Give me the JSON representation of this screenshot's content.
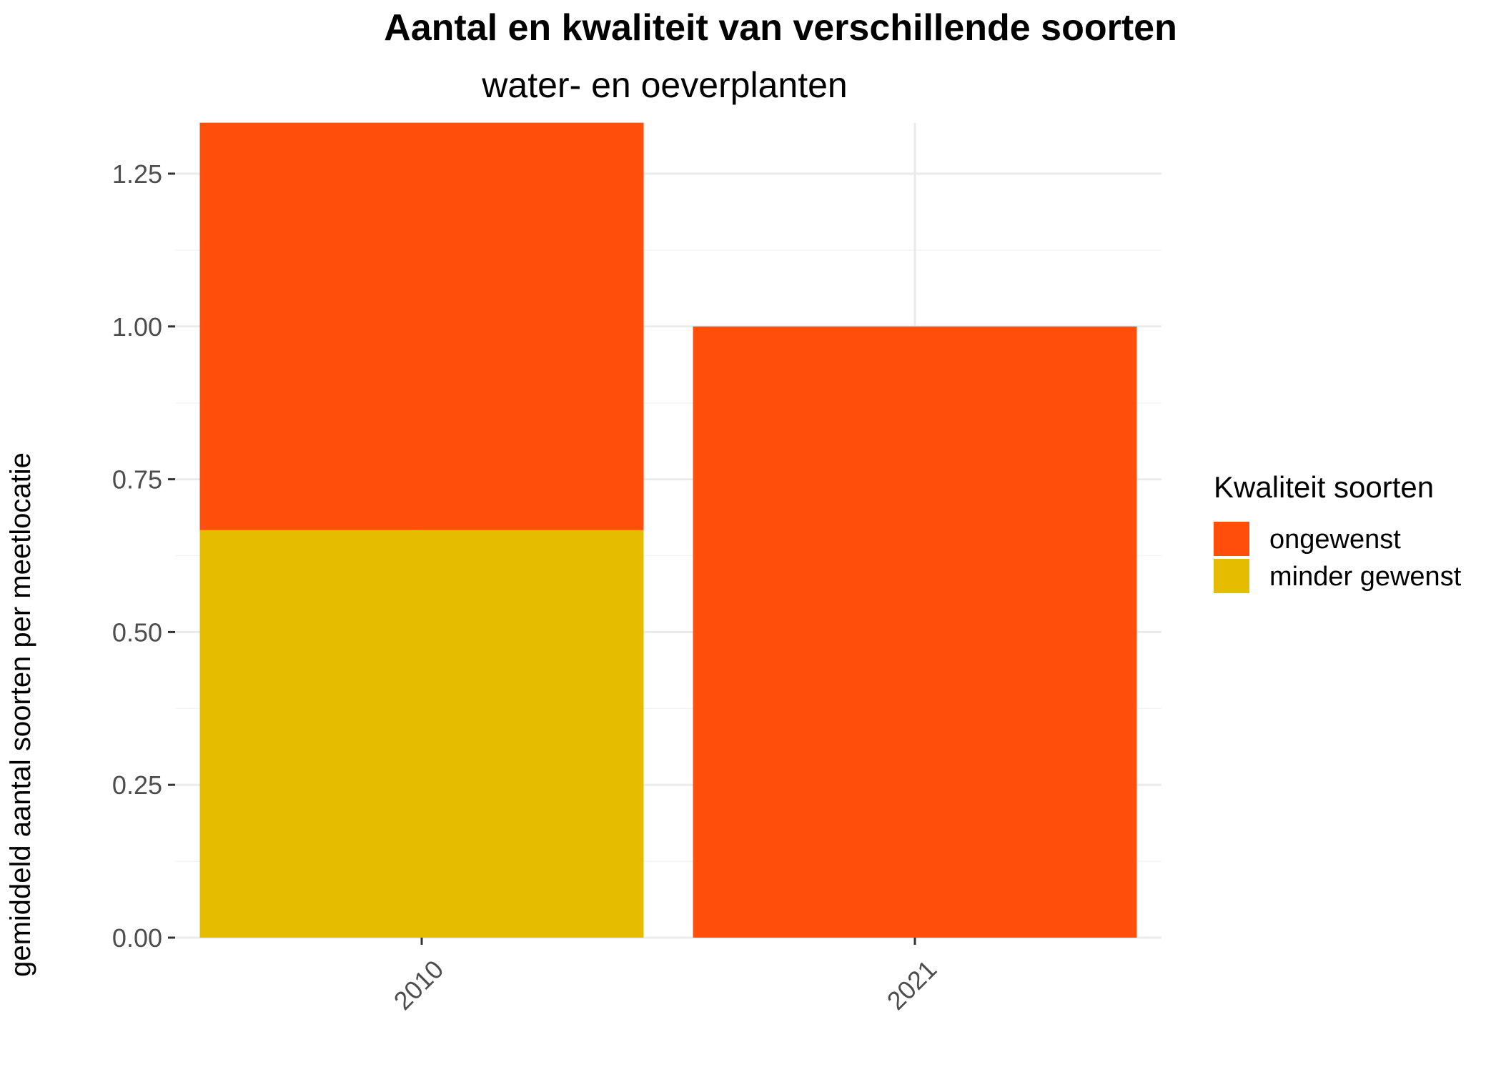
{
  "chart_data": {
    "type": "bar",
    "stacked": true,
    "title": "Aantal en kwaliteit van verschillende soorten",
    "subtitle": "water- en oeverplanten",
    "xlabel": "",
    "ylabel": "gemiddeld aantal soorten per meetlocatie",
    "categories": [
      "2010",
      "2021"
    ],
    "series": [
      {
        "name": "minder gewenst",
        "color": "#E6BC00",
        "values": [
          0.6667,
          0.0
        ]
      },
      {
        "name": "ongewenst",
        "color": "#FF4F0A",
        "values": [
          0.6667,
          1.0
        ]
      }
    ],
    "ylim": [
      0,
      1.333
    ],
    "yticks": [
      0.0,
      0.25,
      0.5,
      0.75,
      1.0,
      1.25
    ],
    "ytick_labels": [
      "0.00",
      "0.25",
      "0.50",
      "0.75",
      "1.00",
      "1.25"
    ],
    "grid": true,
    "legend": {
      "title": "Kwaliteit soorten",
      "position": "right",
      "items": [
        {
          "label": "ongewenst",
          "color": "#FF4F0A"
        },
        {
          "label": "minder gewenst",
          "color": "#E6BC00"
        }
      ]
    }
  }
}
